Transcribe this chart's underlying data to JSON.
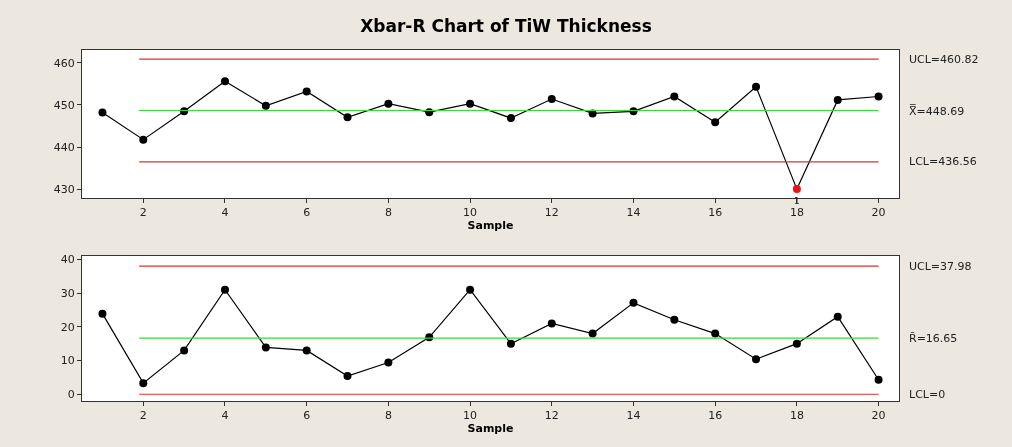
{
  "chart_data": [
    {
      "type": "line",
      "title": "Xbar-R Chart of TiW Thickness",
      "xlabel": "Sample",
      "x": [
        1,
        2,
        3,
        4,
        5,
        6,
        7,
        8,
        9,
        10,
        11,
        12,
        13,
        14,
        15,
        16,
        17,
        18,
        19,
        20
      ],
      "series": [
        {
          "color": "#000000",
          "colors": [
            "#000000",
            "#000000",
            "#000000",
            "#000000",
            "#000000",
            "#000000",
            "#000000",
            "#000000",
            "#000000",
            "#000000",
            "#000000",
            "#000000",
            "#000000",
            "#000000",
            "#000000",
            "#000000",
            "#000000",
            "#ee1111",
            "#000000",
            "#000000"
          ],
          "values": [
            448.2,
            441.8,
            448.5,
            455.6,
            449.8,
            453.2,
            447.1,
            450.3,
            448.3,
            450.3,
            446.9,
            451.4,
            448.0,
            448.5,
            452.0,
            445.9,
            454.3,
            430.1,
            451.2,
            452.0
          ]
        }
      ],
      "xlim": [
        0.5,
        20.5
      ],
      "xticks": [
        2,
        4,
        6,
        8,
        10,
        12,
        14,
        16,
        18,
        20
      ],
      "ylim": [
        428,
        463
      ],
      "yticks": [
        430,
        440,
        450,
        460
      ],
      "ref_lines": [
        {
          "axis": "y",
          "value": 460.82,
          "label": "UCL=460.82",
          "color": "#e03030"
        },
        {
          "axis": "y",
          "value": 448.69,
          "label": "X̿=448.69",
          "color": "#33dd33"
        },
        {
          "axis": "y",
          "value": 436.56,
          "label": "LCL=436.56",
          "color": "#e03030"
        }
      ],
      "annotations": [
        {
          "text": "1",
          "x": 18,
          "y": 430.1
        }
      ],
      "grid": false,
      "marker": "circle",
      "line_style": "solid"
    },
    {
      "type": "line",
      "xlabel": "Sample",
      "x": [
        1,
        2,
        3,
        4,
        5,
        6,
        7,
        8,
        9,
        10,
        11,
        12,
        13,
        14,
        15,
        16,
        17,
        18,
        19,
        20
      ],
      "series": [
        {
          "color": "#000000",
          "values": [
            23.9,
            3.3,
            13.0,
            31.0,
            13.9,
            13.0,
            5.4,
            9.4,
            16.9,
            31.0,
            15.0,
            21.0,
            18.0,
            27.1,
            22.1,
            18.0,
            10.4,
            15.0,
            23.0,
            4.3
          ]
        }
      ],
      "xlim": [
        0.5,
        20.5
      ],
      "xticks": [
        2,
        4,
        6,
        8,
        10,
        12,
        14,
        16,
        18,
        20
      ],
      "ylim": [
        -2,
        41
      ],
      "yticks": [
        0,
        10,
        20,
        30,
        40
      ],
      "ref_lines": [
        {
          "axis": "y",
          "value": 37.98,
          "label": "UCL=37.98",
          "color": "#e03030"
        },
        {
          "axis": "y",
          "value": 16.65,
          "label": "R̄=16.65",
          "color": "#33dd33"
        },
        {
          "axis": "y",
          "value": 0,
          "label": "LCL=0",
          "color": "#e03030"
        }
      ],
      "grid": false,
      "marker": "circle",
      "line_style": "solid"
    }
  ]
}
